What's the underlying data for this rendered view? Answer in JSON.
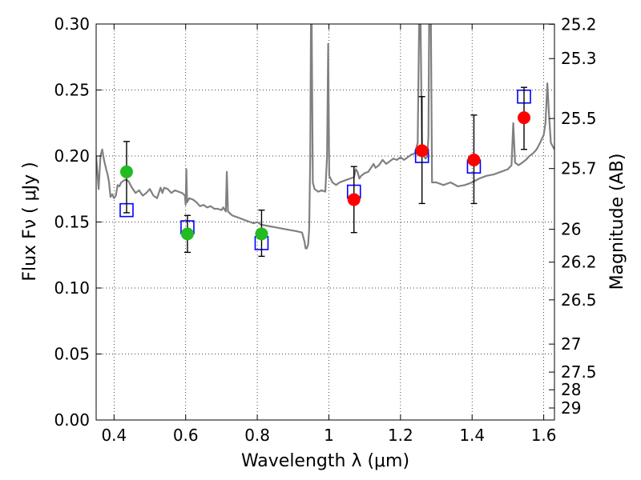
{
  "chart_data": {
    "type": "scatter",
    "xlabel": "Wavelength  λ (μm)",
    "ylabel": "Flux  Fν  ( μJy )",
    "ylabel_right": "Magnitude (AB)",
    "xlim": [
      0.35,
      1.63
    ],
    "ylim": [
      0.0,
      0.3
    ],
    "grid": true,
    "x_ticks": [
      0.4,
      0.6,
      0.8,
      1.0,
      1.2,
      1.4,
      1.6
    ],
    "x_tick_labels": [
      "0.4",
      "0.6",
      "0.8",
      "1",
      "1.2",
      "1.4",
      "1.6"
    ],
    "y_ticks": [
      0.0,
      0.05,
      0.1,
      0.15,
      0.2,
      0.25,
      0.3
    ],
    "y_tick_labels": [
      "0.00",
      "0.05",
      "0.10",
      "0.15",
      "0.20",
      "0.25",
      "0.30"
    ],
    "right_ticks": [
      {
        "flux": 0.2998,
        "label": "25.2"
      },
      {
        "flux": 0.2738,
        "label": "25.3"
      },
      {
        "flux": 0.2284,
        "label": "25.5"
      },
      {
        "flux": 0.1905,
        "label": "25.7"
      },
      {
        "flux": 0.1445,
        "label": "26"
      },
      {
        "flux": 0.1196,
        "label": "26.2"
      },
      {
        "flux": 0.091,
        "label": "26.5"
      },
      {
        "flux": 0.0575,
        "label": "27"
      },
      {
        "flux": 0.0363,
        "label": "27.5"
      },
      {
        "flux": 0.0229,
        "label": "28"
      },
      {
        "flux": 0.0091,
        "label": "29"
      }
    ],
    "series": [
      {
        "kind": "model-spectrum",
        "color": "#808080",
        "points": [
          [
            0.35,
            0.2
          ],
          [
            0.357,
            0.175
          ],
          [
            0.362,
            0.2
          ],
          [
            0.367,
            0.205
          ],
          [
            0.372,
            0.197
          ],
          [
            0.378,
            0.19
          ],
          [
            0.382,
            0.186
          ],
          [
            0.386,
            0.18
          ],
          [
            0.39,
            0.169
          ],
          [
            0.395,
            0.171
          ],
          [
            0.4,
            0.168
          ],
          [
            0.405,
            0.17
          ],
          [
            0.41,
            0.178
          ],
          [
            0.415,
            0.177
          ],
          [
            0.42,
            0.18
          ],
          [
            0.43,
            0.182
          ],
          [
            0.44,
            0.181
          ],
          [
            0.45,
            0.176
          ],
          [
            0.46,
            0.172
          ],
          [
            0.47,
            0.174
          ],
          [
            0.48,
            0.17
          ],
          [
            0.49,
            0.172
          ],
          [
            0.5,
            0.175
          ],
          [
            0.51,
            0.17
          ],
          [
            0.52,
            0.168
          ],
          [
            0.53,
            0.176
          ],
          [
            0.535,
            0.172
          ],
          [
            0.54,
            0.176
          ],
          [
            0.55,
            0.175
          ],
          [
            0.56,
            0.172
          ],
          [
            0.57,
            0.174
          ],
          [
            0.58,
            0.173
          ],
          [
            0.59,
            0.172
          ],
          [
            0.598,
            0.17
          ],
          [
            0.6,
            0.163
          ],
          [
            0.602,
            0.19
          ],
          [
            0.604,
            0.165
          ],
          [
            0.61,
            0.168
          ],
          [
            0.62,
            0.167
          ],
          [
            0.63,
            0.165
          ],
          [
            0.64,
            0.162
          ],
          [
            0.65,
            0.163
          ],
          [
            0.66,
            0.161
          ],
          [
            0.67,
            0.162
          ],
          [
            0.68,
            0.16
          ],
          [
            0.69,
            0.16
          ],
          [
            0.7,
            0.159
          ],
          [
            0.705,
            0.161
          ],
          [
            0.712,
            0.158
          ],
          [
            0.715,
            0.188
          ],
          [
            0.718,
            0.158
          ],
          [
            0.73,
            0.155
          ],
          [
            0.75,
            0.153
          ],
          [
            0.77,
            0.151
          ],
          [
            0.79,
            0.149
          ],
          [
            0.8,
            0.15
          ],
          [
            0.81,
            0.148
          ],
          [
            0.83,
            0.147
          ],
          [
            0.85,
            0.146
          ],
          [
            0.87,
            0.145
          ],
          [
            0.89,
            0.144
          ],
          [
            0.91,
            0.143
          ],
          [
            0.925,
            0.142
          ],
          [
            0.932,
            0.135
          ],
          [
            0.935,
            0.13
          ],
          [
            0.938,
            0.13
          ],
          [
            0.942,
            0.133
          ],
          [
            0.945,
            0.145
          ],
          [
            0.948,
            0.2
          ],
          [
            0.95,
            0.3
          ],
          [
            0.952,
            0.3
          ],
          [
            0.955,
            0.18
          ],
          [
            0.96,
            0.175
          ],
          [
            0.97,
            0.173
          ],
          [
            0.98,
            0.174
          ],
          [
            0.99,
            0.173
          ],
          [
            0.995,
            0.2
          ],
          [
            0.998,
            0.285
          ],
          [
            1.001,
            0.185
          ],
          [
            1.01,
            0.18
          ],
          [
            1.02,
            0.178
          ],
          [
            1.03,
            0.18
          ],
          [
            1.04,
            0.181
          ],
          [
            1.05,
            0.182
          ],
          [
            1.06,
            0.183
          ],
          [
            1.07,
            0.184
          ],
          [
            1.075,
            0.19
          ],
          [
            1.08,
            0.188
          ],
          [
            1.085,
            0.183
          ],
          [
            1.09,
            0.185
          ],
          [
            1.1,
            0.187
          ],
          [
            1.11,
            0.188
          ],
          [
            1.12,
            0.192
          ],
          [
            1.125,
            0.194
          ],
          [
            1.13,
            0.191
          ],
          [
            1.14,
            0.193
          ],
          [
            1.15,
            0.197
          ],
          [
            1.16,
            0.194
          ],
          [
            1.17,
            0.196
          ],
          [
            1.18,
            0.198
          ],
          [
            1.19,
            0.197
          ],
          [
            1.2,
            0.199
          ],
          [
            1.21,
            0.197
          ],
          [
            1.22,
            0.199
          ],
          [
            1.23,
            0.201
          ],
          [
            1.24,
            0.202
          ],
          [
            1.248,
            0.21
          ],
          [
            1.252,
            0.3
          ],
          [
            1.256,
            0.3
          ],
          [
            1.26,
            0.205
          ],
          [
            1.265,
            0.2
          ],
          [
            1.27,
            0.198
          ],
          [
            1.275,
            0.2
          ],
          [
            1.278,
            0.215
          ],
          [
            1.28,
            0.3
          ],
          [
            1.285,
            0.3
          ],
          [
            1.288,
            0.18
          ],
          [
            1.3,
            0.18
          ],
          [
            1.32,
            0.178
          ],
          [
            1.34,
            0.18
          ],
          [
            1.36,
            0.177
          ],
          [
            1.38,
            0.178
          ],
          [
            1.4,
            0.18
          ],
          [
            1.42,
            0.183
          ],
          [
            1.44,
            0.185
          ],
          [
            1.46,
            0.186
          ],
          [
            1.48,
            0.188
          ],
          [
            1.5,
            0.19
          ],
          [
            1.51,
            0.193
          ],
          [
            1.515,
            0.225
          ],
          [
            1.52,
            0.195
          ],
          [
            1.53,
            0.193
          ],
          [
            1.54,
            0.195
          ],
          [
            1.55,
            0.197
          ],
          [
            1.56,
            0.2
          ],
          [
            1.57,
            0.202
          ],
          [
            1.58,
            0.205
          ],
          [
            1.59,
            0.21
          ],
          [
            1.6,
            0.216
          ],
          [
            1.605,
            0.225
          ],
          [
            1.61,
            0.255
          ],
          [
            1.615,
            0.23
          ],
          [
            1.62,
            0.21
          ],
          [
            1.63,
            0.205
          ]
        ]
      },
      {
        "kind": "model-photometry",
        "marker": "square",
        "color": "#0000ff",
        "points": [
          [
            0.435,
            0.159
          ],
          [
            0.605,
            0.146
          ],
          [
            0.812,
            0.134
          ],
          [
            1.07,
            0.173
          ],
          [
            1.26,
            0.2
          ],
          [
            1.405,
            0.192
          ],
          [
            1.545,
            0.245
          ]
        ]
      },
      {
        "kind": "observed-green",
        "marker": "circle",
        "color": "#22bb22",
        "points": [
          {
            "x": 0.435,
            "y": 0.188,
            "err_lo": 0.157,
            "err_hi": 0.211
          },
          {
            "x": 0.605,
            "y": 0.141,
            "err_lo": 0.127,
            "err_hi": 0.155
          },
          {
            "x": 0.812,
            "y": 0.141,
            "err_lo": 0.124,
            "err_hi": 0.159
          }
        ]
      },
      {
        "kind": "observed-red",
        "marker": "circle",
        "color": "#ff0000",
        "points": [
          {
            "x": 1.07,
            "y": 0.167,
            "err_lo": 0.142,
            "err_hi": 0.192
          },
          {
            "x": 1.26,
            "y": 0.204,
            "err_lo": 0.164,
            "err_hi": 0.245
          },
          {
            "x": 1.405,
            "y": 0.197,
            "err_lo": 0.164,
            "err_hi": 0.231
          },
          {
            "x": 1.545,
            "y": 0.229,
            "err_lo": 0.205,
            "err_hi": 0.252
          }
        ]
      }
    ]
  }
}
